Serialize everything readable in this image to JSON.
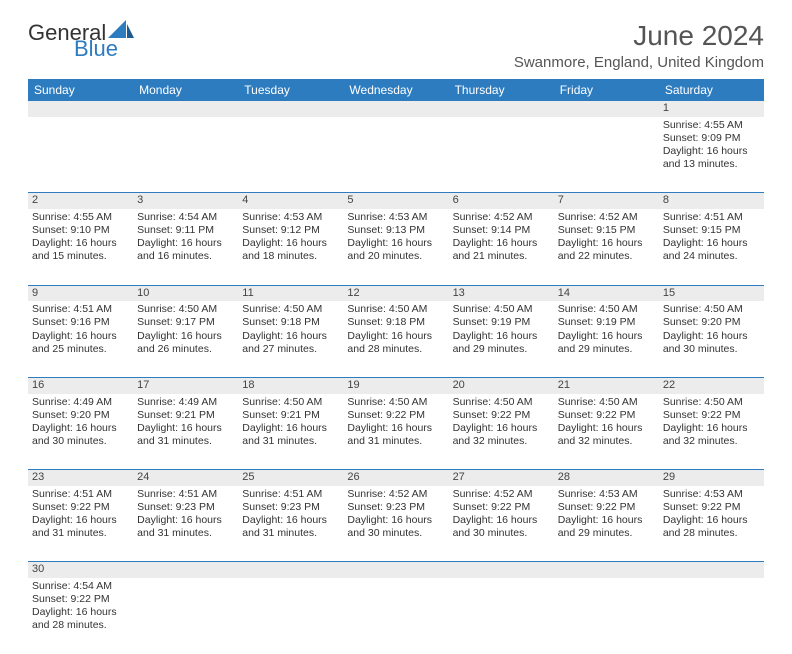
{
  "logo": {
    "text_general": "General",
    "text_blue": "Blue",
    "sail_color": "#2d7cc0"
  },
  "header": {
    "title": "June 2024",
    "location": "Swanmore, England, United Kingdom"
  },
  "colors": {
    "header_bg": "#2d7cc0",
    "header_text": "#ffffff",
    "daynum_bg": "#ececec",
    "row_border": "#2d7cc0"
  },
  "weekdays": [
    "Sunday",
    "Monday",
    "Tuesday",
    "Wednesday",
    "Thursday",
    "Friday",
    "Saturday"
  ],
  "weeks": [
    [
      null,
      null,
      null,
      null,
      null,
      null,
      {
        "n": 1,
        "sr": "4:55 AM",
        "ss": "9:09 PM",
        "dh": 16,
        "dm": 13
      }
    ],
    [
      {
        "n": 2,
        "sr": "4:55 AM",
        "ss": "9:10 PM",
        "dh": 16,
        "dm": 15
      },
      {
        "n": 3,
        "sr": "4:54 AM",
        "ss": "9:11 PM",
        "dh": 16,
        "dm": 16
      },
      {
        "n": 4,
        "sr": "4:53 AM",
        "ss": "9:12 PM",
        "dh": 16,
        "dm": 18
      },
      {
        "n": 5,
        "sr": "4:53 AM",
        "ss": "9:13 PM",
        "dh": 16,
        "dm": 20
      },
      {
        "n": 6,
        "sr": "4:52 AM",
        "ss": "9:14 PM",
        "dh": 16,
        "dm": 21
      },
      {
        "n": 7,
        "sr": "4:52 AM",
        "ss": "9:15 PM",
        "dh": 16,
        "dm": 22
      },
      {
        "n": 8,
        "sr": "4:51 AM",
        "ss": "9:15 PM",
        "dh": 16,
        "dm": 24
      }
    ],
    [
      {
        "n": 9,
        "sr": "4:51 AM",
        "ss": "9:16 PM",
        "dh": 16,
        "dm": 25
      },
      {
        "n": 10,
        "sr": "4:50 AM",
        "ss": "9:17 PM",
        "dh": 16,
        "dm": 26
      },
      {
        "n": 11,
        "sr": "4:50 AM",
        "ss": "9:18 PM",
        "dh": 16,
        "dm": 27
      },
      {
        "n": 12,
        "sr": "4:50 AM",
        "ss": "9:18 PM",
        "dh": 16,
        "dm": 28
      },
      {
        "n": 13,
        "sr": "4:50 AM",
        "ss": "9:19 PM",
        "dh": 16,
        "dm": 29
      },
      {
        "n": 14,
        "sr": "4:50 AM",
        "ss": "9:19 PM",
        "dh": 16,
        "dm": 29
      },
      {
        "n": 15,
        "sr": "4:50 AM",
        "ss": "9:20 PM",
        "dh": 16,
        "dm": 30
      }
    ],
    [
      {
        "n": 16,
        "sr": "4:49 AM",
        "ss": "9:20 PM",
        "dh": 16,
        "dm": 30
      },
      {
        "n": 17,
        "sr": "4:49 AM",
        "ss": "9:21 PM",
        "dh": 16,
        "dm": 31
      },
      {
        "n": 18,
        "sr": "4:50 AM",
        "ss": "9:21 PM",
        "dh": 16,
        "dm": 31
      },
      {
        "n": 19,
        "sr": "4:50 AM",
        "ss": "9:22 PM",
        "dh": 16,
        "dm": 31
      },
      {
        "n": 20,
        "sr": "4:50 AM",
        "ss": "9:22 PM",
        "dh": 16,
        "dm": 32
      },
      {
        "n": 21,
        "sr": "4:50 AM",
        "ss": "9:22 PM",
        "dh": 16,
        "dm": 32
      },
      {
        "n": 22,
        "sr": "4:50 AM",
        "ss": "9:22 PM",
        "dh": 16,
        "dm": 32
      }
    ],
    [
      {
        "n": 23,
        "sr": "4:51 AM",
        "ss": "9:22 PM",
        "dh": 16,
        "dm": 31
      },
      {
        "n": 24,
        "sr": "4:51 AM",
        "ss": "9:23 PM",
        "dh": 16,
        "dm": 31
      },
      {
        "n": 25,
        "sr": "4:51 AM",
        "ss": "9:23 PM",
        "dh": 16,
        "dm": 31
      },
      {
        "n": 26,
        "sr": "4:52 AM",
        "ss": "9:23 PM",
        "dh": 16,
        "dm": 30
      },
      {
        "n": 27,
        "sr": "4:52 AM",
        "ss": "9:22 PM",
        "dh": 16,
        "dm": 30
      },
      {
        "n": 28,
        "sr": "4:53 AM",
        "ss": "9:22 PM",
        "dh": 16,
        "dm": 29
      },
      {
        "n": 29,
        "sr": "4:53 AM",
        "ss": "9:22 PM",
        "dh": 16,
        "dm": 28
      }
    ],
    [
      {
        "n": 30,
        "sr": "4:54 AM",
        "ss": "9:22 PM",
        "dh": 16,
        "dm": 28
      },
      null,
      null,
      null,
      null,
      null,
      null
    ]
  ],
  "labels": {
    "sunrise": "Sunrise: ",
    "sunset": "Sunset: ",
    "daylight": "Daylight: ",
    "hours": " hours",
    "and": "and ",
    "minutes": " minutes."
  }
}
